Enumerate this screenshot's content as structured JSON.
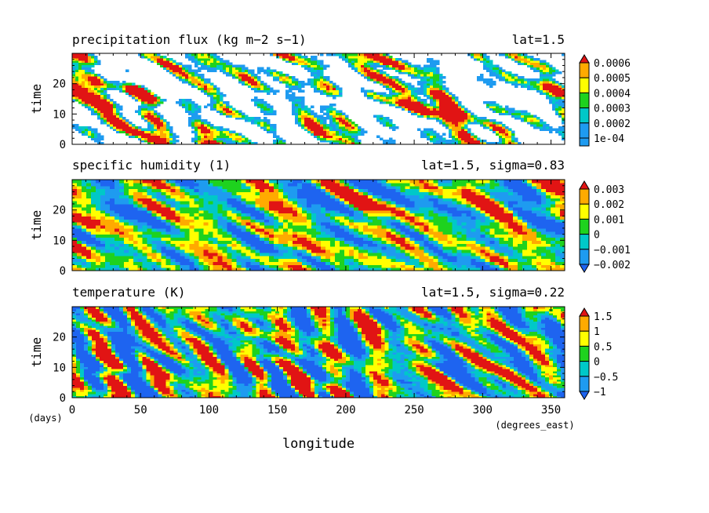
{
  "chart_data": [
    {
      "type": "heatmap",
      "title": "precipitation flux (kg m−2 s−1)",
      "subtitle": "lat=1.5",
      "xlabel": "longitude",
      "ylabel": "time",
      "xlim": [
        0,
        360
      ],
      "ylim": [
        0,
        30
      ],
      "yticks": [
        "0",
        "10",
        "20"
      ],
      "colorbar": {
        "labels": [
          "0.0006",
          "0.0005",
          "0.0004",
          "0.0003",
          "0.0002",
          "1e-04"
        ],
        "levels": [
          0.0001,
          0.0002,
          0.0003,
          0.0004,
          0.0005,
          0.0006
        ],
        "colors": [
          "#ffffff",
          "#1e9bf0",
          "#00c8c8",
          "#1ed21e",
          "#ffff00",
          "#ffaa00",
          "#e11414"
        ]
      }
    },
    {
      "type": "heatmap",
      "title": "specific humidity (1)",
      "subtitle": "lat=1.5, sigma=0.83",
      "xlabel": "longitude",
      "ylabel": "time",
      "xlim": [
        0,
        360
      ],
      "ylim": [
        0,
        30
      ],
      "yticks": [
        "0",
        "10",
        "20"
      ],
      "colorbar": {
        "labels": [
          "0.003",
          "0.002",
          "0.001",
          "0",
          "−0.001",
          "−0.002"
        ],
        "levels": [
          -0.002,
          -0.001,
          0,
          0.001,
          0.002,
          0.003
        ],
        "colors": [
          "#1e64f0",
          "#1e9bf0",
          "#00c8c8",
          "#1ed21e",
          "#ffff00",
          "#ffaa00",
          "#e11414"
        ]
      }
    },
    {
      "type": "heatmap",
      "title": "temperature (K)",
      "subtitle": "lat=1.5, sigma=0.22",
      "xlabel": "longitude",
      "ylabel": "time",
      "xlim": [
        0,
        360
      ],
      "ylim": [
        0,
        30
      ],
      "xticks": [
        "0",
        "50",
        "100",
        "150",
        "200",
        "250",
        "300",
        "350"
      ],
      "yticks": [
        "0",
        "10",
        "20"
      ],
      "colorbar": {
        "labels": [
          "1.5",
          "1",
          "0.5",
          "0",
          "−0.5",
          "−1"
        ],
        "levels": [
          -1,
          -0.5,
          0,
          0.5,
          1,
          1.5
        ],
        "colors": [
          "#1e64f0",
          "#1e9bf0",
          "#00c8c8",
          "#1ed21e",
          "#ffff00",
          "#ffaa00",
          "#e11414"
        ]
      }
    }
  ],
  "axis_units": {
    "y": "(days)",
    "x": "(degrees_east)"
  },
  "xlabel": "longitude"
}
